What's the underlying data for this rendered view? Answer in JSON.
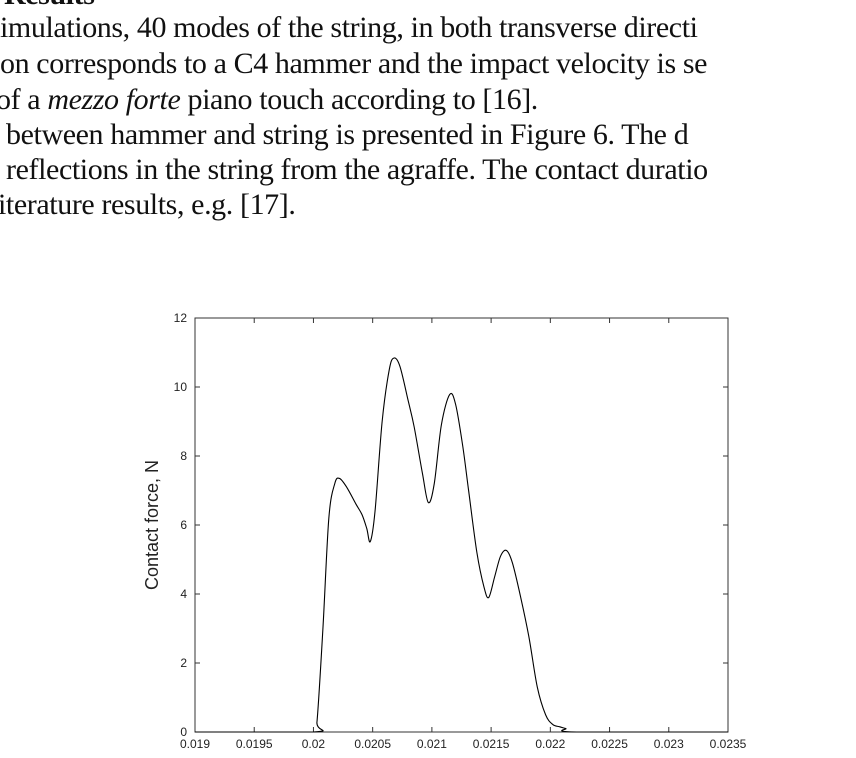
{
  "document": {
    "heading": "Results",
    "lines": [
      {
        "text": "imulations, 40 modes of the string, in both transverse directi"
      },
      {
        "text": "on corresponds to a C4 hammer and the impact velocity is se"
      },
      {
        "before": "of a ",
        "italic": "mezzo forte",
        "after": " piano touch according to [16]."
      },
      {
        "text": "between hammer and string is presented in Figure 6. The d"
      },
      {
        "text": "reflections in the string from the agraffe. The contact duratio"
      },
      {
        "text": "iterature results, e.g. [17]."
      }
    ]
  },
  "chart_data": {
    "type": "line",
    "title": "",
    "xlabel": "",
    "ylabel": "Contact force, N",
    "xlim": [
      0.019,
      0.0235
    ],
    "ylim": [
      0,
      12
    ],
    "xticks": [
      "0.019",
      "0.0195",
      "0.02",
      "0.0205",
      "0.021",
      "0.0215",
      "0.022",
      "0.0225",
      "0.023",
      "0.0235"
    ],
    "yticks": [
      "0",
      "2",
      "4",
      "6",
      "8",
      "10",
      "12"
    ],
    "grid": false,
    "line_color": "#000000",
    "series": [
      {
        "x": [
          0.019,
          0.02,
          0.02003,
          0.02008,
          0.02013,
          0.02018,
          0.02022,
          0.02028,
          0.02036,
          0.02041,
          0.02045,
          0.02048,
          0.02052,
          0.02058,
          0.02064,
          0.02068,
          0.02073,
          0.0208,
          0.02085,
          0.02092,
          0.02097,
          0.02102,
          0.02108,
          0.02115,
          0.0212,
          0.02126,
          0.02131,
          0.02138,
          0.02144,
          0.02148,
          0.02153,
          0.02158,
          0.02163,
          0.02168,
          0.02175,
          0.02182,
          0.02189,
          0.02196,
          0.02202,
          0.02208,
          0.02213,
          0.02222,
          0.0235
        ],
        "y": [
          0,
          0,
          0.3,
          3.0,
          6.2,
          7.2,
          7.35,
          7.1,
          6.6,
          6.3,
          5.9,
          5.52,
          6.4,
          9.0,
          10.5,
          10.84,
          10.6,
          9.6,
          8.85,
          7.5,
          6.65,
          7.2,
          8.9,
          9.78,
          9.5,
          8.3,
          7.0,
          5.2,
          4.2,
          3.9,
          4.5,
          5.1,
          5.26,
          4.9,
          3.9,
          2.74,
          1.3,
          0.5,
          0.22,
          0.15,
          0.1,
          0,
          0
        ]
      }
    ]
  }
}
